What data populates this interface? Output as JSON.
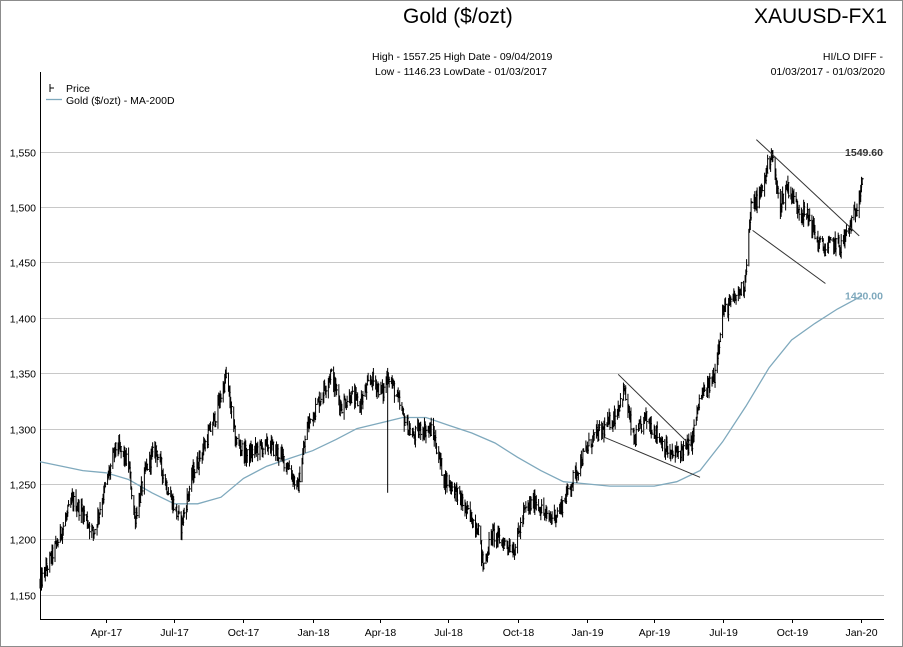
{
  "header": {
    "title": "Gold ($/ozt)",
    "symbol": "XAUUSD-FX1",
    "stats_line1": "High - 1557.25 High Date - 09/04/2019",
    "stats_line2": "Low - 1146.23 LowDate - 01/03/2017",
    "hilo_line1": "HI/LO DIFF -",
    "hilo_line2": "01/03/2017 - 01/03/2020"
  },
  "chart_data": {
    "type": "line",
    "title": "Gold ($/ozt)",
    "ylim": [
      1128,
      1613
    ],
    "xlim": [
      "2017-01-03",
      "2020-02-01"
    ],
    "yticks": [
      1150,
      1200,
      1250,
      1300,
      1350,
      1400,
      1450,
      1500,
      1550
    ],
    "ytick_labels": [
      "1,150",
      "1,200",
      "1,250",
      "1,300",
      "1,350",
      "1,400",
      "1,450",
      "1,500",
      "1,550"
    ],
    "xticks": [
      "2017-04-01",
      "2017-07-01",
      "2017-10-01",
      "2018-01-01",
      "2018-04-01",
      "2018-07-01",
      "2018-10-01",
      "2019-01-01",
      "2019-04-01",
      "2019-07-01",
      "2019-10-01",
      "2020-01-01"
    ],
    "xtick_labels": [
      "Apr-17",
      "Jul-17",
      "Oct-17",
      "Jan-18",
      "Apr-18",
      "Jul-18",
      "Oct-18",
      "Jan-19",
      "Apr-19",
      "Jul-19",
      "Oct-19",
      "Jan-20"
    ],
    "grid": true,
    "legend": {
      "position": "top-left",
      "entries": [
        "Price",
        "Gold ($/ozt) - MA-200D"
      ]
    },
    "colors": {
      "price": "#000000",
      "ma": "#7fa9bd",
      "grid": "#c8c8c8",
      "trendline": "#333333"
    },
    "series": [
      {
        "name": "Price",
        "style": "hlc-bars",
        "x": [
          "2017-01-03",
          "2017-01-25",
          "2017-02-15",
          "2017-03-01",
          "2017-03-15",
          "2017-04-01",
          "2017-04-15",
          "2017-05-01",
          "2017-05-09",
          "2017-05-25",
          "2017-06-06",
          "2017-06-20",
          "2017-07-10",
          "2017-07-25",
          "2017-08-10",
          "2017-08-25",
          "2017-09-08",
          "2017-09-20",
          "2017-10-06",
          "2017-10-20",
          "2017-11-05",
          "2017-11-20",
          "2017-12-01",
          "2017-12-12",
          "2017-12-25",
          "2018-01-10",
          "2018-01-25",
          "2018-02-08",
          "2018-02-20",
          "2018-03-05",
          "2018-03-20",
          "2018-04-05",
          "2018-04-11",
          "2018-04-20",
          "2018-05-02",
          "2018-05-15",
          "2018-05-25",
          "2018-06-10",
          "2018-06-25",
          "2018-07-10",
          "2018-07-25",
          "2018-08-10",
          "2018-08-16",
          "2018-08-28",
          "2018-09-10",
          "2018-09-27",
          "2018-10-10",
          "2018-10-25",
          "2018-11-10",
          "2018-11-25",
          "2018-12-10",
          "2018-12-25",
          "2019-01-10",
          "2019-01-25",
          "2019-02-08",
          "2019-02-20",
          "2019-03-05",
          "2019-03-20",
          "2019-04-05",
          "2019-04-23",
          "2019-05-05",
          "2019-05-20",
          "2019-06-01",
          "2019-06-10",
          "2019-06-20",
          "2019-07-01",
          "2019-07-15",
          "2019-07-30",
          "2019-08-08",
          "2019-08-20",
          "2019-09-04",
          "2019-09-15",
          "2019-09-25",
          "2019-10-05",
          "2019-10-15",
          "2019-10-25",
          "2019-11-05",
          "2019-11-15",
          "2019-11-25",
          "2019-12-05",
          "2019-12-15",
          "2019-12-25",
          "2020-01-03"
        ],
        "values": [
          1160,
          1195,
          1235,
          1225,
          1205,
          1250,
          1285,
          1268,
          1218,
          1265,
          1282,
          1250,
          1212,
          1258,
          1285,
          1312,
          1348,
          1290,
          1275,
          1282,
          1285,
          1275,
          1265,
          1245,
          1302,
          1326,
          1350,
          1320,
          1330,
          1322,
          1345,
          1332,
          1350,
          1335,
          1310,
          1292,
          1300,
          1298,
          1255,
          1245,
          1225,
          1210,
          1175,
          1205,
          1198,
          1192,
          1225,
          1235,
          1218,
          1225,
          1248,
          1272,
          1292,
          1300,
          1312,
          1335,
          1288,
          1310,
          1295,
          1275,
          1280,
          1285,
          1328,
          1335,
          1348,
          1405,
          1415,
          1430,
          1500,
          1510,
          1550,
          1500,
          1520,
          1505,
          1495,
          1490,
          1468,
          1462,
          1468,
          1465,
          1478,
          1495,
          1528
        ]
      },
      {
        "name": "Gold ($/ozt) - MA-200D",
        "style": "line",
        "x": [
          "2017-01-03",
          "2017-02-01",
          "2017-03-01",
          "2017-04-01",
          "2017-05-01",
          "2017-06-01",
          "2017-07-01",
          "2017-08-01",
          "2017-09-01",
          "2017-10-01",
          "2017-11-01",
          "2017-12-01",
          "2018-01-01",
          "2018-02-01",
          "2018-03-01",
          "2018-04-01",
          "2018-05-01",
          "2018-06-01",
          "2018-07-01",
          "2018-08-01",
          "2018-09-01",
          "2018-10-01",
          "2018-11-01",
          "2018-12-01",
          "2019-01-01",
          "2019-02-01",
          "2019-03-01",
          "2019-04-01",
          "2019-05-01",
          "2019-06-01",
          "2019-07-01",
          "2019-08-01",
          "2019-09-01",
          "2019-10-01",
          "2019-11-01",
          "2019-12-01",
          "2020-01-03"
        ],
        "values": [
          1270,
          1266,
          1262,
          1260,
          1254,
          1242,
          1232,
          1232,
          1238,
          1255,
          1266,
          1273,
          1280,
          1290,
          1300,
          1305,
          1310,
          1310,
          1303,
          1296,
          1287,
          1274,
          1262,
          1252,
          1250,
          1248,
          1248,
          1248,
          1252,
          1262,
          1288,
          1320,
          1355,
          1380,
          1395,
          1408,
          1420
        ]
      }
    ],
    "trendlines": [
      {
        "from": [
          "2019-02-12",
          1349
        ],
        "to": [
          "2019-05-22",
          1283
        ]
      },
      {
        "from": [
          "2019-01-25",
          1292
        ],
        "to": [
          "2019-06-01",
          1256
        ]
      },
      {
        "from": [
          "2019-08-15",
          1561
        ],
        "to": [
          "2019-12-30",
          1474
        ]
      },
      {
        "from": [
          "2019-08-10",
          1479
        ],
        "to": [
          "2019-11-15",
          1431
        ]
      }
    ],
    "annotations": [
      {
        "text": "1549.60",
        "series": "Price",
        "value": 1549.6
      },
      {
        "text": "1420.00",
        "series": "Gold ($/ozt) - MA-200D",
        "value": 1420.0
      }
    ]
  }
}
